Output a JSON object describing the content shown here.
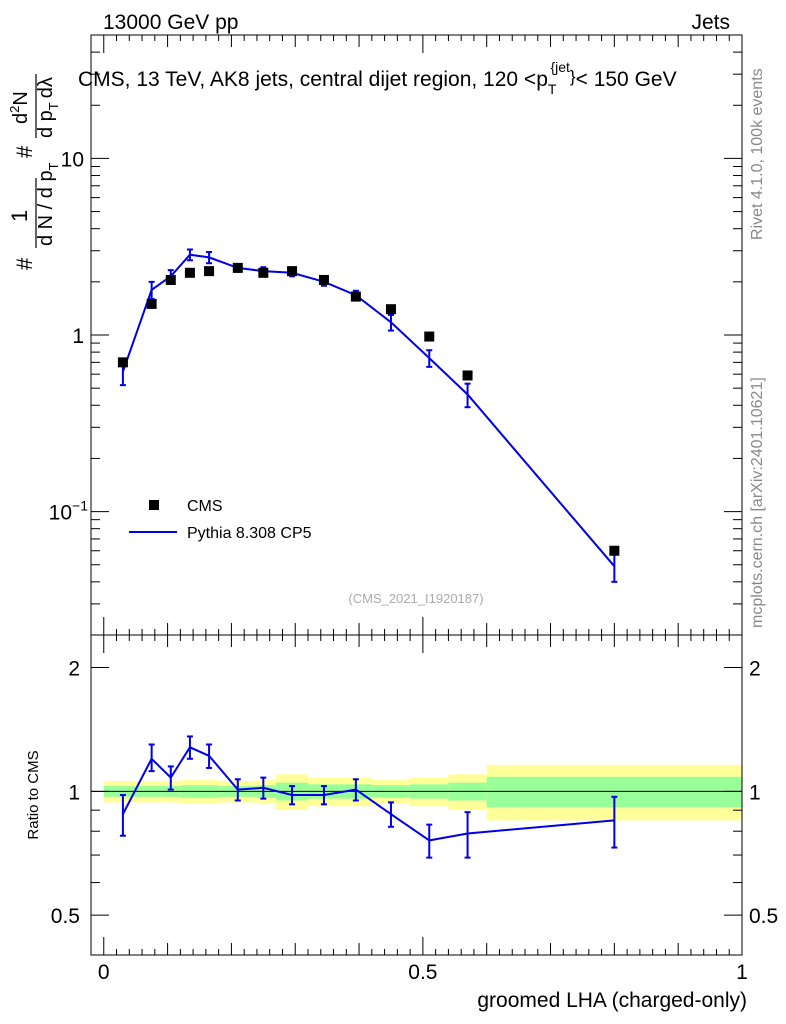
{
  "header": {
    "left": "13000 GeV pp",
    "right": "Jets"
  },
  "side_labels": {
    "top": "Rivet 4.1.0,  100k events",
    "bottom": "mcplots.cern.ch [arXiv:2401.10621]"
  },
  "chart_data": [
    {
      "type": "scatter",
      "panel": "main",
      "title_parts": {
        "main": "CMS, 13 TeV, AK8 jets, central dijet region, 120 <p",
        "sub": "T",
        "sup": "{jet",
        "sup2": "}",
        "tail": "< 150 GeV"
      },
      "ylabel": {
        "num_left": "#",
        "num_mid": "1",
        "den": "d N / d p",
        "den_sub": "T",
        "hash2": "#",
        "frac2_num": "d",
        "frac2_sup": "2",
        "frac2_num2": "N",
        "frac2_den": "d p",
        "frac2_den_sub": "T",
        "frac2_den2": "dλ"
      },
      "xlim": [
        -0.02,
        1.0
      ],
      "ylim": [
        0.02,
        50
      ],
      "yscale": "log",
      "ytick_labels": [
        {
          "v": 0.1,
          "base": "10",
          "exp": "−1"
        },
        {
          "v": 1,
          "base": "1",
          "exp": ""
        },
        {
          "v": 10,
          "base": "10",
          "exp": ""
        }
      ],
      "series": [
        {
          "name": "CMS",
          "style": "markers",
          "color": "#000000",
          "x": [
            0.03,
            0.075,
            0.105,
            0.135,
            0.165,
            0.21,
            0.25,
            0.295,
            0.345,
            0.395,
            0.45,
            0.51,
            0.57,
            0.8
          ],
          "y": [
            0.7,
            1.5,
            2.05,
            2.25,
            2.3,
            2.4,
            2.25,
            2.3,
            2.05,
            1.65,
            1.4,
            0.98,
            0.59,
            0.06
          ]
        },
        {
          "name": "Pythia 8.308 CP5",
          "style": "line",
          "color": "#0000e8",
          "x": [
            0.03,
            0.075,
            0.105,
            0.135,
            0.165,
            0.21,
            0.25,
            0.295,
            0.345,
            0.395,
            0.45,
            0.51,
            0.57,
            0.8
          ],
          "y": [
            0.62,
            1.8,
            2.15,
            2.85,
            2.75,
            2.4,
            2.3,
            2.25,
            2.0,
            1.68,
            1.18,
            0.74,
            0.46,
            0.049
          ],
          "yerr_low": [
            0.1,
            0.2,
            0.18,
            0.2,
            0.2,
            0.12,
            0.12,
            0.1,
            0.1,
            0.1,
            0.12,
            0.08,
            0.07,
            0.009
          ],
          "yerr_high": [
            0.1,
            0.2,
            0.18,
            0.2,
            0.2,
            0.12,
            0.12,
            0.1,
            0.1,
            0.1,
            0.12,
            0.08,
            0.07,
            0.009
          ]
        }
      ],
      "legend": [
        "CMS",
        "Pythia 8.308 CP5"
      ],
      "legend_position": "lower-left",
      "annotation": "(CMS_2021_I1920187)"
    },
    {
      "type": "line",
      "panel": "ratio",
      "ylabel": "Ratio to CMS",
      "xlabel": "groomed LHA (charged-only)",
      "xlim": [
        -0.02,
        1.0
      ],
      "ylim": [
        0.4,
        2.4
      ],
      "yscale": "log",
      "ytick_labels": [
        {
          "v": 0.5,
          "label": "0.5"
        },
        {
          "v": 1,
          "label": "1"
        },
        {
          "v": 2,
          "label": "2"
        }
      ],
      "xtick_labels": [
        {
          "v": 0,
          "label": "0"
        },
        {
          "v": 0.5,
          "label": "0.5"
        },
        {
          "v": 1,
          "label": "1"
        }
      ],
      "bands": {
        "edges": [
          0.0,
          0.06,
          0.09,
          0.12,
          0.15,
          0.18,
          0.24,
          0.27,
          0.32,
          0.37,
          0.42,
          0.48,
          0.54,
          0.6,
          1.0
        ],
        "green_low": [
          0.97,
          0.97,
          0.97,
          0.965,
          0.965,
          0.97,
          0.965,
          0.95,
          0.96,
          0.96,
          0.965,
          0.96,
          0.95,
          0.915
        ],
        "green_high": [
          1.03,
          1.03,
          1.03,
          1.035,
          1.035,
          1.03,
          1.035,
          1.05,
          1.04,
          1.04,
          1.035,
          1.04,
          1.05,
          1.085
        ],
        "yellow_low": [
          0.94,
          0.94,
          0.94,
          0.935,
          0.935,
          0.94,
          0.935,
          0.9,
          0.92,
          0.92,
          0.935,
          0.92,
          0.9,
          0.85
        ],
        "yellow_high": [
          1.06,
          1.06,
          1.06,
          1.065,
          1.065,
          1.06,
          1.065,
          1.1,
          1.08,
          1.08,
          1.065,
          1.08,
          1.1,
          1.16
        ]
      },
      "series": [
        {
          "name": "Pythia 8.308 CP5 / CMS",
          "color": "#0000e8",
          "x": [
            0.03,
            0.075,
            0.105,
            0.135,
            0.165,
            0.21,
            0.25,
            0.295,
            0.345,
            0.395,
            0.45,
            0.51,
            0.57,
            0.8
          ],
          "y": [
            0.88,
            1.2,
            1.08,
            1.28,
            1.22,
            1.01,
            1.02,
            0.98,
            0.98,
            1.01,
            0.88,
            0.76,
            0.79,
            0.85
          ],
          "yerr_low": [
            0.1,
            0.08,
            0.07,
            0.08,
            0.08,
            0.06,
            0.06,
            0.05,
            0.05,
            0.06,
            0.06,
            0.07,
            0.1,
            0.12
          ],
          "yerr_high": [
            0.1,
            0.1,
            0.07,
            0.08,
            0.08,
            0.06,
            0.06,
            0.05,
            0.05,
            0.06,
            0.06,
            0.07,
            0.1,
            0.12
          ]
        }
      ]
    }
  ]
}
